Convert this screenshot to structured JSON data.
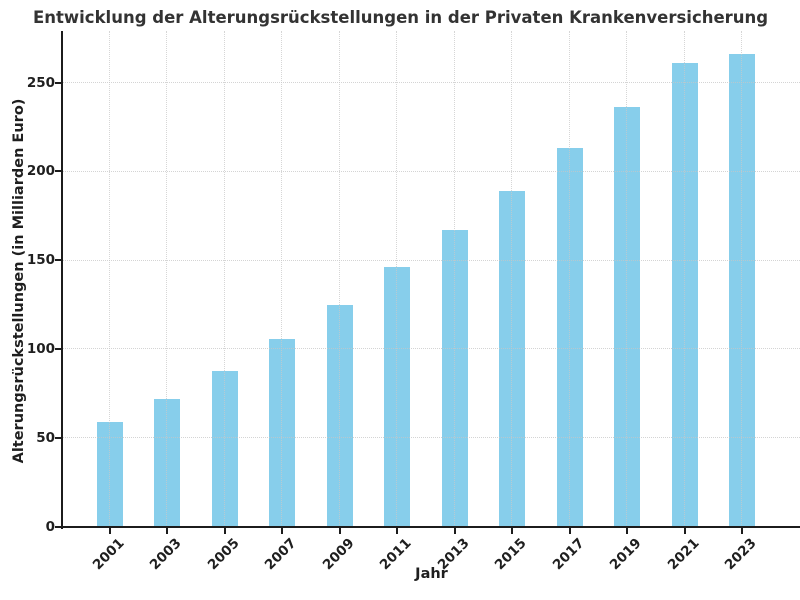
{
  "chart_data": {
    "type": "bar",
    "title": "Entwicklung der Alterungsrückstellungen in der Privaten Krankenversicherung",
    "xlabel": "Jahr",
    "ylabel": "Alterungsrückstellungen (in Milliarden Euro)",
    "categories": [
      "2001",
      "2003",
      "2005",
      "2007",
      "2009",
      "2011",
      "2013",
      "2015",
      "2017",
      "2019",
      "2021",
      "2023"
    ],
    "values": [
      59,
      72,
      88,
      106,
      125,
      146,
      167,
      189,
      213,
      236,
      261,
      266
    ],
    "yticks": [
      0,
      50,
      100,
      150,
      200,
      250
    ],
    "ylim": [
      0,
      279
    ],
    "grid": true,
    "grid_style": "dotted",
    "legend": "none",
    "bar_color": "#87CEEB",
    "axis_color": "#1c1c1c",
    "grid_color": "#c9c9c9",
    "title_color": "#333333",
    "tick_label_color": "#1f1f1f",
    "x_tick_rotation_deg": 45
  }
}
